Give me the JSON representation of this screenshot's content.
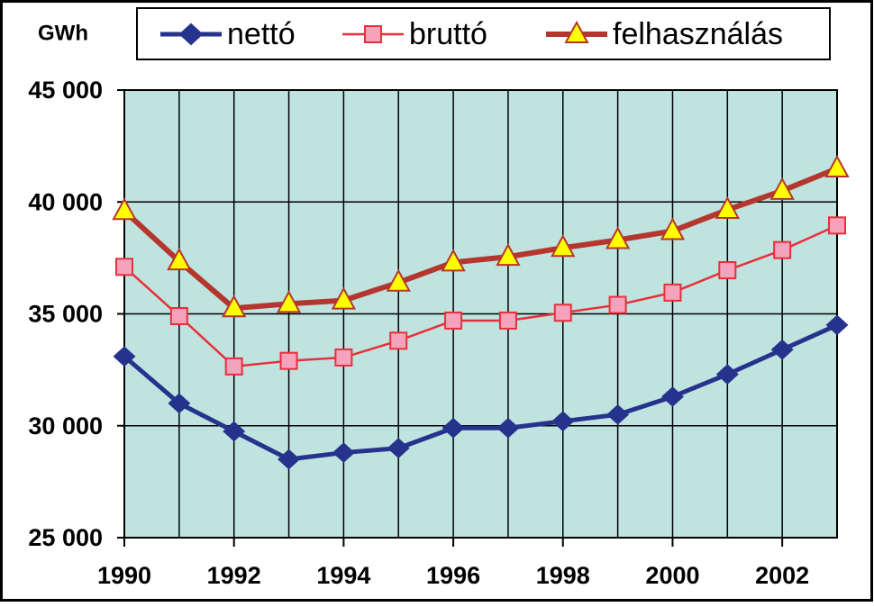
{
  "chart_data": {
    "type": "line",
    "y_label": "GWh",
    "x": [
      1990,
      1991,
      1992,
      1993,
      1994,
      1995,
      1996,
      1997,
      1998,
      1999,
      2000,
      2001,
      2002,
      2003
    ],
    "xlim": [
      1990,
      2003
    ],
    "xticks": [
      1990,
      1992,
      1994,
      1996,
      1998,
      2000,
      2002
    ],
    "ylim": [
      25000,
      45000
    ],
    "yticks": [
      {
        "value": 25000,
        "label": "25 000"
      },
      {
        "value": 30000,
        "label": "30 000"
      },
      {
        "value": 35000,
        "label": "35 000"
      },
      {
        "value": 40000,
        "label": "40 000"
      },
      {
        "value": 45000,
        "label": "45 000"
      }
    ],
    "grid": true,
    "legend": "top",
    "series": [
      {
        "name": "nettó",
        "color": "#26338c",
        "marker": "diamond",
        "marker_color": "#26338c",
        "values": [
          33100,
          31000,
          29750,
          28500,
          28800,
          29000,
          29900,
          29900,
          30200,
          30500,
          31300,
          32300,
          33400,
          34500
        ]
      },
      {
        "name": "bruttó",
        "color": "#e8303a",
        "marker": "square",
        "marker_color": "#f5a3bd",
        "values": [
          37100,
          34900,
          32650,
          32900,
          33050,
          33800,
          34700,
          34700,
          35050,
          35400,
          35950,
          36950,
          37850,
          38950
        ]
      },
      {
        "name": "felhasználás",
        "color": "#b5362e",
        "marker": "triangle",
        "marker_color": "#ffff00",
        "values": [
          39600,
          37350,
          35250,
          35450,
          35600,
          36400,
          37300,
          37550,
          37950,
          38300,
          38700,
          39650,
          40500,
          41500
        ]
      }
    ]
  }
}
